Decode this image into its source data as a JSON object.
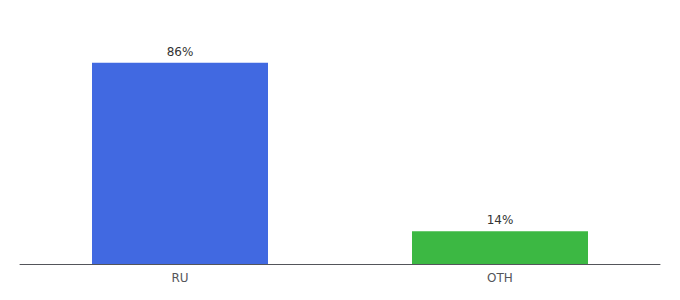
{
  "chart_data": {
    "type": "bar",
    "categories": [
      "RU",
      "OTH"
    ],
    "values": [
      86,
      14
    ],
    "value_labels": [
      "86%",
      "14%"
    ],
    "colors": [
      "#4169e1",
      "#3cb843"
    ],
    "ylim": [
      0,
      100
    ],
    "grid": false,
    "data_labels": true,
    "tick_labels": "x"
  }
}
